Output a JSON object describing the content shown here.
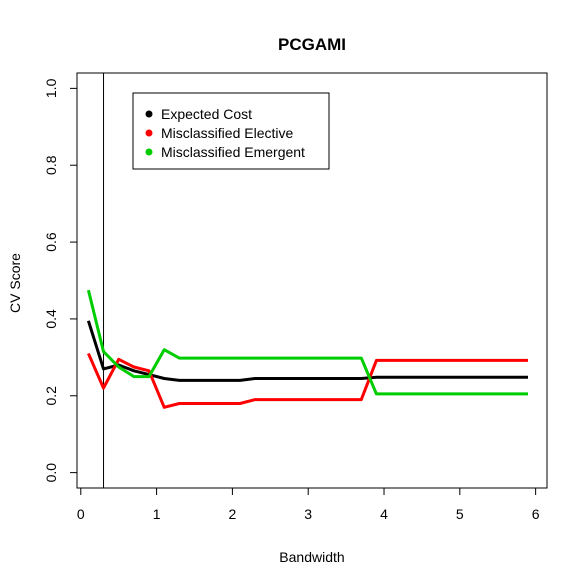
{
  "chart_data": {
    "type": "line",
    "title": "PCGAMI",
    "xlabel": "Bandwidth",
    "ylabel": "CV Score",
    "xlim": [
      -0.05,
      6.15
    ],
    "ylim": [
      -0.04,
      1.04
    ],
    "xticks": [
      "0",
      "1",
      "2",
      "3",
      "4",
      "5",
      "6"
    ],
    "yticks": [
      "0.0",
      "0.2",
      "0.4",
      "0.6",
      "0.8",
      "1.0"
    ],
    "vline": 0.3,
    "grid": false,
    "legend_position": "top-left",
    "series": [
      {
        "name": "Expected Cost",
        "color": "#000000",
        "x": [
          0.1,
          0.3,
          0.5,
          0.7,
          0.9,
          1.1,
          1.3,
          1.5,
          1.7,
          1.9,
          2.1,
          2.3,
          2.5,
          2.7,
          2.9,
          3.1,
          3.3,
          3.5,
          3.7,
          3.9,
          4.1,
          4.3,
          4.5,
          4.7,
          4.9,
          5.1,
          5.3,
          5.5,
          5.7,
          5.9
        ],
        "y": [
          0.395,
          0.27,
          0.28,
          0.265,
          0.255,
          0.245,
          0.24,
          0.24,
          0.24,
          0.24,
          0.24,
          0.245,
          0.245,
          0.245,
          0.245,
          0.245,
          0.245,
          0.245,
          0.245,
          0.248,
          0.248,
          0.248,
          0.248,
          0.248,
          0.248,
          0.248,
          0.248,
          0.248,
          0.248,
          0.248
        ]
      },
      {
        "name": "Misclassified Elective",
        "color": "#ff0000",
        "x": [
          0.1,
          0.3,
          0.5,
          0.7,
          0.9,
          1.1,
          1.3,
          1.5,
          1.7,
          1.9,
          2.1,
          2.3,
          2.5,
          2.7,
          2.9,
          3.1,
          3.3,
          3.5,
          3.7,
          3.9,
          4.1,
          4.3,
          4.5,
          4.7,
          4.9,
          5.1,
          5.3,
          5.5,
          5.7,
          5.9
        ],
        "y": [
          0.31,
          0.22,
          0.295,
          0.275,
          0.265,
          0.17,
          0.18,
          0.18,
          0.18,
          0.18,
          0.18,
          0.19,
          0.19,
          0.19,
          0.19,
          0.19,
          0.19,
          0.19,
          0.19,
          0.292,
          0.292,
          0.292,
          0.292,
          0.292,
          0.292,
          0.292,
          0.292,
          0.292,
          0.292,
          0.292
        ]
      },
      {
        "name": "Misclassified Emergent",
        "color": "#00cd00",
        "x": [
          0.1,
          0.3,
          0.5,
          0.7,
          0.9,
          1.1,
          1.3,
          1.5,
          1.7,
          1.9,
          2.1,
          2.3,
          2.5,
          2.7,
          2.9,
          3.1,
          3.3,
          3.5,
          3.7,
          3.9,
          4.1,
          4.3,
          4.5,
          4.7,
          4.9,
          5.1,
          5.3,
          5.5,
          5.7,
          5.9
        ],
        "y": [
          0.475,
          0.315,
          0.275,
          0.25,
          0.25,
          0.32,
          0.298,
          0.298,
          0.298,
          0.298,
          0.298,
          0.298,
          0.298,
          0.298,
          0.298,
          0.298,
          0.298,
          0.298,
          0.298,
          0.205,
          0.205,
          0.205,
          0.205,
          0.205,
          0.205,
          0.205,
          0.205,
          0.205,
          0.205,
          0.205
        ]
      }
    ]
  }
}
